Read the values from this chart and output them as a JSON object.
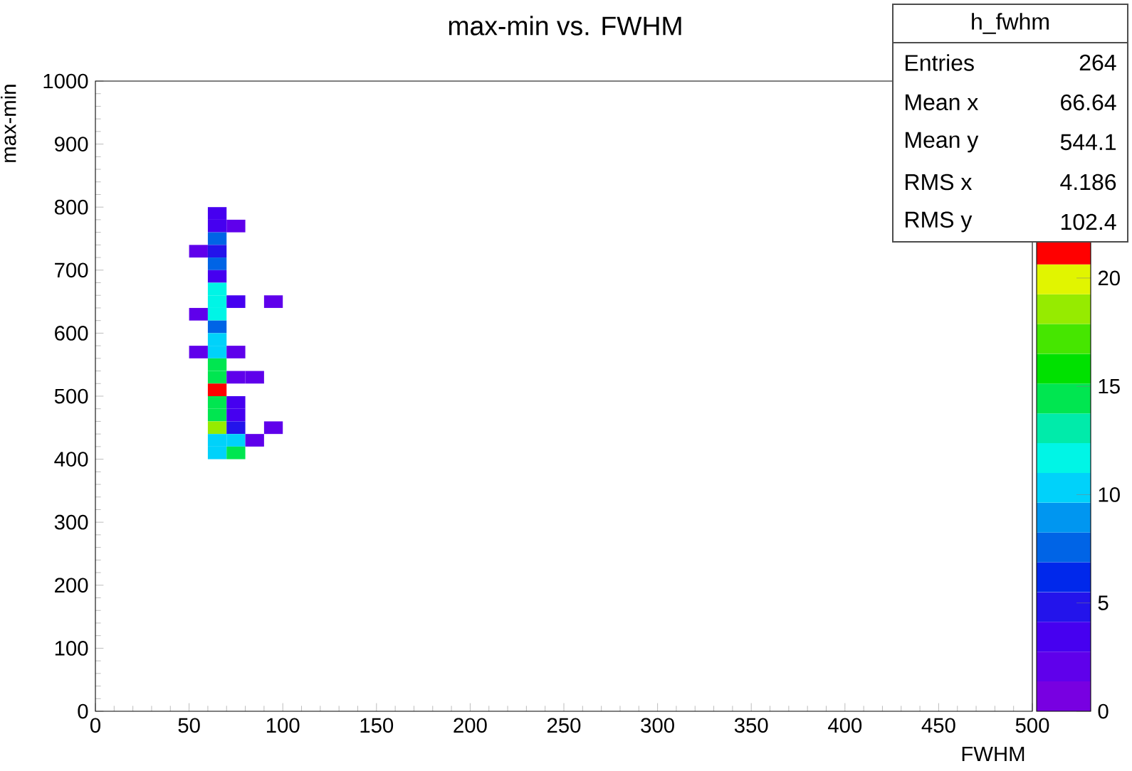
{
  "chart_data": {
    "type": "heatmap",
    "title": "max-min vs. FWHM",
    "xlabel": "FWHM",
    "ylabel": "max-min",
    "x": [
      55,
      65,
      75,
      85,
      95
    ],
    "y": [
      790,
      770,
      750,
      730,
      710,
      690,
      670,
      650,
      630,
      610,
      590,
      570,
      550,
      530,
      510,
      490,
      470,
      450,
      430,
      410
    ],
    "cells": [
      [
        null,
        4,
        null,
        null,
        null
      ],
      [
        null,
        4,
        2,
        null,
        null
      ],
      [
        null,
        7,
        null,
        null,
        null
      ],
      [
        2,
        5,
        null,
        null,
        null
      ],
      [
        null,
        8,
        null,
        null,
        null
      ],
      [
        null,
        4,
        null,
        null,
        null
      ],
      [
        null,
        11,
        null,
        null,
        null
      ],
      [
        null,
        11,
        4,
        null,
        2
      ],
      [
        2,
        12,
        null,
        null,
        null
      ],
      [
        null,
        8,
        null,
        null,
        null
      ],
      [
        null,
        10,
        null,
        null,
        null
      ],
      [
        2,
        10,
        2,
        null,
        null
      ],
      [
        null,
        15,
        null,
        null,
        null
      ],
      [
        null,
        15,
        2,
        2,
        null
      ],
      [
        null,
        21,
        null,
        null,
        null
      ],
      [
        null,
        15,
        4,
        null,
        null
      ],
      [
        null,
        15,
        4,
        null,
        null
      ],
      [
        null,
        19,
        5,
        null,
        2
      ],
      [
        null,
        10,
        10,
        2,
        null
      ],
      [
        null,
        10,
        14,
        null,
        null
      ]
    ],
    "xlim": [
      0,
      500
    ],
    "xticks": [
      0,
      50,
      100,
      150,
      200,
      250,
      300,
      350,
      400,
      450,
      500
    ],
    "ylim": [
      0,
      1000
    ],
    "yticks": [
      0,
      100,
      200,
      300,
      400,
      500,
      600,
      700,
      800,
      900,
      1000
    ],
    "clim": [
      0,
      22
    ],
    "cticks": [
      0,
      5,
      10,
      15,
      20
    ],
    "annotations": [
      "h_fwhm",
      "Entries",
      "264",
      "Mean x",
      "66.64",
      "Mean y",
      "544.1",
      "RMS x",
      "4.186",
      "RMS y",
      "102.4"
    ]
  }
}
